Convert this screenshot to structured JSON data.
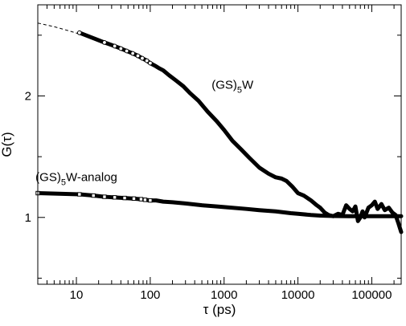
{
  "chart_data": {
    "type": "line",
    "x_scale": "log",
    "xlabel": "τ (ps)",
    "ylabel": "G(τ)",
    "xlim": [
      3,
      250000
    ],
    "ylim": [
      0.45,
      2.75
    ],
    "x_ticks": [
      10,
      100,
      1000,
      10000,
      100000
    ],
    "x_tick_labels": [
      "10",
      "100",
      "1000",
      "10000",
      "100000"
    ],
    "y_ticks": [
      1,
      2
    ],
    "y_tick_labels": [
      "1",
      "2"
    ],
    "grid": false,
    "legend": "none",
    "annotations": [
      {
        "base": "(GS)",
        "sub": "5",
        "rest": "W",
        "x": 1300,
        "y": 2.06
      },
      {
        "base": "(GS)",
        "sub": "5",
        "rest": "W-analog",
        "x": 10,
        "y": 1.3
      }
    ],
    "series": [
      {
        "color": "#000000",
        "fit_line": {
          "x": [
            3,
            5,
            8,
            11,
            16,
            24,
            33,
            45,
            60,
            75,
            95
          ],
          "y": [
            2.6,
            2.57,
            2.535,
            2.51,
            2.48,
            2.44,
            2.41,
            2.37,
            2.34,
            2.31,
            2.28
          ]
        },
        "points": {
          "x": [
            11,
            24,
            33,
            40,
            48,
            58,
            68,
            78,
            90,
            100,
            115,
            130,
            150,
            180,
            220,
            280,
            350,
            450,
            600,
            800,
            1000,
            1300,
            1700,
            2200,
            3000,
            4000,
            5000,
            6000,
            7000,
            8500,
            10000,
            12000,
            15000,
            18000,
            20000,
            23000,
            26000,
            30000,
            35000,
            40000,
            45000,
            50000,
            55000,
            60000,
            65000,
            70000,
            75000,
            80000,
            90000,
            100000,
            110000,
            120000,
            135000,
            150000,
            170000,
            190000,
            210000,
            230000,
            250000
          ],
          "y": [
            2.52,
            2.44,
            2.41,
            2.39,
            2.37,
            2.35,
            2.33,
            2.31,
            2.29,
            2.27,
            2.25,
            2.23,
            2.21,
            2.17,
            2.13,
            2.08,
            2.02,
            1.96,
            1.87,
            1.79,
            1.72,
            1.63,
            1.56,
            1.49,
            1.41,
            1.36,
            1.33,
            1.32,
            1.3,
            1.25,
            1.2,
            1.18,
            1.14,
            1.1,
            1.08,
            1.04,
            1.02,
            1.01,
            1.03,
            1.02,
            1.1,
            1.07,
            1.05,
            1.09,
            0.97,
            1.0,
            1.05,
            1.0,
            1.08,
            1.1,
            1.13,
            1.07,
            1.11,
            1.06,
            1.08,
            1.04,
            1.02,
            0.95,
            0.88
          ]
        }
      },
      {
        "color": "#000000",
        "fit_line": {
          "x": [
            3,
            5,
            8,
            12,
            17,
            23,
            30,
            40,
            55,
            75,
            95
          ],
          "y": [
            1.2,
            1.195,
            1.19,
            1.185,
            1.18,
            1.175,
            1.17,
            1.165,
            1.16,
            1.152,
            1.145
          ]
        },
        "points": {
          "x": [
            3,
            11,
            17,
            24,
            33,
            45,
            60,
            75,
            85,
            100,
            120,
            150,
            200,
            300,
            500,
            800,
            1000,
            2000,
            3000,
            5000,
            8000,
            10000,
            15000,
            20000,
            30000,
            50000,
            100000,
            200000,
            250000
          ],
          "y": [
            1.2,
            1.19,
            1.18,
            1.17,
            1.165,
            1.16,
            1.155,
            1.15,
            1.145,
            1.14,
            1.14,
            1.13,
            1.125,
            1.115,
            1.1,
            1.09,
            1.085,
            1.07,
            1.06,
            1.05,
            1.035,
            1.03,
            1.02,
            1.015,
            1.012,
            1.01,
            1.01,
            1.01,
            1.01
          ]
        }
      }
    ]
  }
}
